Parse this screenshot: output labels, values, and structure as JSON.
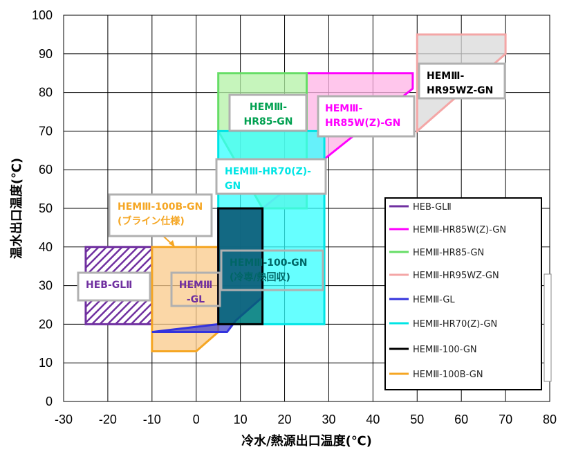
{
  "chart_data": {
    "type": "area",
    "xlabel": "冷水/熱源出口温度(℃)",
    "ylabel": "温水出口温度(℃)",
    "xlim": [
      -30,
      80
    ],
    "ylim": [
      0,
      100
    ],
    "xticks": [
      "-30",
      "-20",
      "-10",
      "0",
      "10",
      "20",
      "30",
      "40",
      "50",
      "60",
      "70",
      "80"
    ],
    "yticks": [
      "0",
      "10",
      "20",
      "30",
      "40",
      "50",
      "60",
      "70",
      "80",
      "90",
      "100"
    ],
    "grid": true,
    "legend_position": "right",
    "series": [
      {
        "name": "HEB-GLⅡ",
        "color": "#7030a0",
        "fill": "hatch",
        "polygon": [
          [
            -25,
            20
          ],
          [
            -10,
            20
          ],
          [
            -10,
            40
          ],
          [
            -25,
            40
          ]
        ]
      },
      {
        "name": "HEMⅢ-HR85W(Z)-GN",
        "color": "#ff00ff",
        "fill": "#ffb3e6",
        "polygon": [
          [
            25,
            85
          ],
          [
            49,
            85
          ],
          [
            49,
            81
          ],
          [
            15,
            50
          ],
          [
            25,
            50
          ]
        ]
      },
      {
        "name": "HEMⅢ-HR85-GN",
        "color": "#66dd66",
        "fill": "#b3f2a6",
        "polygon": [
          [
            5,
            85
          ],
          [
            25,
            85
          ],
          [
            25,
            50
          ],
          [
            15,
            50
          ],
          [
            5,
            70
          ]
        ]
      },
      {
        "name": "HEMⅢ-HR95WZ-GN",
        "color": "#f4a6a6",
        "fill": "#d9d9d9",
        "polygon": [
          [
            50,
            95
          ],
          [
            70,
            95
          ],
          [
            70,
            90
          ],
          [
            50,
            70
          ]
        ]
      },
      {
        "name": "HEMⅢ-GL",
        "color": "#3333dd",
        "fill": "#4444cc",
        "polygon": [
          [
            -10,
            18
          ],
          [
            7,
            18
          ],
          [
            9,
            21
          ],
          [
            15,
            27
          ],
          [
            15,
            50
          ],
          [
            5,
            50
          ],
          [
            5,
            20
          ]
        ]
      },
      {
        "name": "HEMⅢ-HR70(Z)-GN",
        "color": "#00e5e5",
        "fill": "#33ffff",
        "polygon": [
          [
            5,
            20
          ],
          [
            29,
            20
          ],
          [
            29,
            70
          ],
          [
            5,
            70
          ]
        ]
      },
      {
        "name": "HEMⅢ-100-GN",
        "color": "#000000",
        "fill": "#006666",
        "polygon": [
          [
            5,
            20
          ],
          [
            15,
            20
          ],
          [
            15,
            50
          ],
          [
            5,
            50
          ]
        ]
      },
      {
        "name": "HEMⅢ-100B-GN",
        "color": "#f5a623",
        "fill": "#f9c98a",
        "polygon": [
          [
            -10,
            13
          ],
          [
            0,
            13
          ],
          [
            5,
            18
          ],
          [
            5,
            40
          ],
          [
            -10,
            40
          ]
        ]
      }
    ],
    "annotations": [
      {
        "lines": [
          "HEB-GLⅡ"
        ],
        "color": "#7030a0"
      },
      {
        "lines": [
          "HEMⅢ",
          "-GL"
        ],
        "color": "#7030a0"
      },
      {
        "lines": [
          "HEMⅢ-100B-GN",
          "(ブライン仕様)"
        ],
        "color": "#f5a623"
      },
      {
        "lines": [
          "HEMⅢ-",
          "HR85-GN"
        ],
        "color": "#00a050"
      },
      {
        "lines": [
          "HEMⅢ-",
          "HR85W(Z)-GN"
        ],
        "color": "#ff00ff"
      },
      {
        "lines": [
          "HEMⅢ-",
          "HR95WZ-GN"
        ],
        "color": "#000000"
      },
      {
        "lines": [
          "HEMⅢ-HR70(Z)-",
          "GN"
        ],
        "color": "#00e5e5"
      },
      {
        "lines": [
          "HEMⅢ-100-GN",
          "(冷専/熱回収)"
        ],
        "color": "#006666"
      }
    ]
  }
}
